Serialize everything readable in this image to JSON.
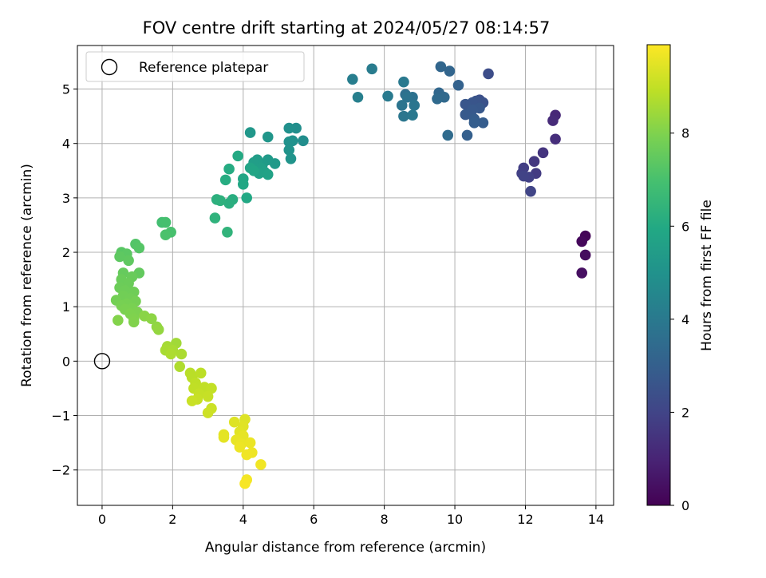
{
  "chart_data": {
    "type": "scatter",
    "title": "FOV centre drift starting at 2024/05/27 08:14:57",
    "xlabel": "Angular distance from reference (arcmin)",
    "ylabel": "Rotation from reference (arcmin)",
    "xlim": [
      -0.7,
      14.5
    ],
    "ylim": [
      -2.65,
      5.8
    ],
    "xticks": [
      0,
      2,
      4,
      6,
      8,
      10,
      12,
      14
    ],
    "yticks": [
      -2,
      -1,
      0,
      1,
      2,
      3,
      4,
      5
    ],
    "xtick_labels": [
      "0",
      "2",
      "4",
      "6",
      "8",
      "10",
      "12",
      "14"
    ],
    "ytick_labels": [
      "−2",
      "−1",
      "0",
      "1",
      "2",
      "3",
      "4",
      "5"
    ],
    "grid": true,
    "legend": {
      "position": "top-left",
      "entries": [
        "Reference platepar"
      ]
    },
    "reference_point": {
      "x": 0,
      "y": 0,
      "label": "Reference platepar",
      "marker": "open-circle"
    },
    "colorbar": {
      "label": "Hours from first FF file",
      "colormap": "viridis",
      "range": [
        0,
        9.9
      ],
      "ticks": [
        0,
        2,
        4,
        6,
        8
      ],
      "tick_labels": [
        "0",
        "2",
        "4",
        "6",
        "8"
      ]
    },
    "series": [
      {
        "points": [
          {
            "x": 13.7,
            "y": 2.3,
            "h": 0.1
          },
          {
            "x": 13.6,
            "y": 2.2,
            "h": 0.2
          },
          {
            "x": 13.7,
            "y": 1.95,
            "h": 0.3
          },
          {
            "x": 13.6,
            "y": 1.62,
            "h": 0.4
          },
          {
            "x": 12.85,
            "y": 4.52,
            "h": 1.1
          },
          {
            "x": 12.78,
            "y": 4.42,
            "h": 1.2
          },
          {
            "x": 12.85,
            "y": 4.08,
            "h": 1.3
          },
          {
            "x": 12.5,
            "y": 3.83,
            "h": 1.5
          },
          {
            "x": 12.25,
            "y": 3.67,
            "h": 1.6
          },
          {
            "x": 12.3,
            "y": 3.45,
            "h": 1.7
          },
          {
            "x": 11.95,
            "y": 3.55,
            "h": 1.8
          },
          {
            "x": 11.9,
            "y": 3.45,
            "h": 1.85
          },
          {
            "x": 12.1,
            "y": 3.38,
            "h": 1.9
          },
          {
            "x": 11.95,
            "y": 3.4,
            "h": 1.95
          },
          {
            "x": 12.15,
            "y": 3.12,
            "h": 2.0
          },
          {
            "x": 10.95,
            "y": 5.28,
            "h": 2.3
          },
          {
            "x": 10.7,
            "y": 4.8,
            "h": 2.4
          },
          {
            "x": 10.8,
            "y": 4.75,
            "h": 2.5
          },
          {
            "x": 10.6,
            "y": 4.78,
            "h": 2.55
          },
          {
            "x": 10.5,
            "y": 4.75,
            "h": 2.6
          },
          {
            "x": 10.3,
            "y": 4.72,
            "h": 2.65
          },
          {
            "x": 10.7,
            "y": 4.65,
            "h": 2.7
          },
          {
            "x": 10.5,
            "y": 4.62,
            "h": 2.75
          },
          {
            "x": 10.3,
            "y": 4.53,
            "h": 2.8
          },
          {
            "x": 10.55,
            "y": 4.45,
            "h": 2.85
          },
          {
            "x": 10.8,
            "y": 4.38,
            "h": 2.9
          },
          {
            "x": 10.55,
            "y": 4.38,
            "h": 2.95
          },
          {
            "x": 10.35,
            "y": 4.15,
            "h": 3.0
          },
          {
            "x": 10.1,
            "y": 5.07,
            "h": 3.1
          },
          {
            "x": 9.85,
            "y": 5.33,
            "h": 3.2
          },
          {
            "x": 9.6,
            "y": 5.41,
            "h": 3.25
          },
          {
            "x": 9.55,
            "y": 4.93,
            "h": 3.3
          },
          {
            "x": 9.7,
            "y": 4.85,
            "h": 3.35
          },
          {
            "x": 9.5,
            "y": 4.82,
            "h": 3.4
          },
          {
            "x": 9.8,
            "y": 4.15,
            "h": 3.45
          },
          {
            "x": 8.6,
            "y": 4.9,
            "h": 3.6
          },
          {
            "x": 8.8,
            "y": 4.85,
            "h": 3.7
          },
          {
            "x": 8.65,
            "y": 4.85,
            "h": 3.75
          },
          {
            "x": 8.5,
            "y": 4.7,
            "h": 3.8
          },
          {
            "x": 8.85,
            "y": 4.7,
            "h": 3.85
          },
          {
            "x": 8.55,
            "y": 4.5,
            "h": 3.9
          },
          {
            "x": 8.8,
            "y": 4.52,
            "h": 3.95
          },
          {
            "x": 8.55,
            "y": 5.13,
            "h": 4.0
          },
          {
            "x": 8.1,
            "y": 4.87,
            "h": 4.05
          },
          {
            "x": 7.65,
            "y": 5.37,
            "h": 4.1
          },
          {
            "x": 7.1,
            "y": 5.18,
            "h": 4.2
          },
          {
            "x": 7.25,
            "y": 4.85,
            "h": 4.25
          },
          {
            "x": 5.7,
            "y": 4.05,
            "h": 4.8
          },
          {
            "x": 5.5,
            "y": 4.28,
            "h": 4.85
          },
          {
            "x": 5.3,
            "y": 4.28,
            "h": 4.9
          },
          {
            "x": 5.4,
            "y": 4.05,
            "h": 4.95
          },
          {
            "x": 5.3,
            "y": 4.03,
            "h": 5.0
          },
          {
            "x": 5.3,
            "y": 3.88,
            "h": 5.05
          },
          {
            "x": 5.35,
            "y": 3.72,
            "h": 5.1
          },
          {
            "x": 4.7,
            "y": 4.12,
            "h": 5.15
          },
          {
            "x": 4.2,
            "y": 4.2,
            "h": 5.2
          },
          {
            "x": 4.9,
            "y": 3.63,
            "h": 5.3
          },
          {
            "x": 4.7,
            "y": 3.7,
            "h": 5.35
          },
          {
            "x": 4.55,
            "y": 3.62,
            "h": 5.4
          },
          {
            "x": 4.4,
            "y": 3.7,
            "h": 5.45
          },
          {
            "x": 4.3,
            "y": 3.65,
            "h": 5.5
          },
          {
            "x": 4.5,
            "y": 3.55,
            "h": 5.55
          },
          {
            "x": 4.6,
            "y": 3.48,
            "h": 5.6
          },
          {
            "x": 4.45,
            "y": 3.45,
            "h": 5.65
          },
          {
            "x": 4.7,
            "y": 3.43,
            "h": 5.7
          },
          {
            "x": 4.2,
            "y": 3.55,
            "h": 5.75
          },
          {
            "x": 4.3,
            "y": 3.5,
            "h": 5.8
          },
          {
            "x": 4.0,
            "y": 3.35,
            "h": 5.85
          },
          {
            "x": 4.0,
            "y": 3.25,
            "h": 5.9
          },
          {
            "x": 4.1,
            "y": 3.0,
            "h": 5.95
          },
          {
            "x": 3.85,
            "y": 3.77,
            "h": 6.0
          },
          {
            "x": 3.6,
            "y": 3.53,
            "h": 6.05
          },
          {
            "x": 3.5,
            "y": 3.33,
            "h": 6.1
          },
          {
            "x": 3.7,
            "y": 2.97,
            "h": 6.15
          },
          {
            "x": 3.6,
            "y": 2.9,
            "h": 6.2
          },
          {
            "x": 3.25,
            "y": 2.97,
            "h": 6.25
          },
          {
            "x": 3.35,
            "y": 2.95,
            "h": 6.3
          },
          {
            "x": 3.2,
            "y": 2.63,
            "h": 6.35
          },
          {
            "x": 3.55,
            "y": 2.37,
            "h": 6.4
          },
          {
            "x": 1.7,
            "y": 2.55,
            "h": 6.9
          },
          {
            "x": 1.8,
            "y": 2.55,
            "h": 6.95
          },
          {
            "x": 1.95,
            "y": 2.37,
            "h": 7.0
          },
          {
            "x": 1.8,
            "y": 2.32,
            "h": 7.05
          },
          {
            "x": 0.95,
            "y": 2.15,
            "h": 7.2
          },
          {
            "x": 1.05,
            "y": 2.08,
            "h": 7.25
          },
          {
            "x": 0.55,
            "y": 2.0,
            "h": 7.3
          },
          {
            "x": 0.7,
            "y": 1.97,
            "h": 7.35
          },
          {
            "x": 0.5,
            "y": 1.92,
            "h": 7.4
          },
          {
            "x": 0.75,
            "y": 1.85,
            "h": 7.45
          },
          {
            "x": 1.05,
            "y": 1.62,
            "h": 7.5
          },
          {
            "x": 0.6,
            "y": 1.62,
            "h": 7.55
          },
          {
            "x": 0.85,
            "y": 1.55,
            "h": 7.6
          },
          {
            "x": 0.55,
            "y": 1.5,
            "h": 7.62
          },
          {
            "x": 0.75,
            "y": 1.43,
            "h": 7.65
          },
          {
            "x": 0.5,
            "y": 1.35,
            "h": 7.67
          },
          {
            "x": 0.65,
            "y": 1.3,
            "h": 7.7
          },
          {
            "x": 0.9,
            "y": 1.27,
            "h": 7.72
          },
          {
            "x": 0.6,
            "y": 1.2,
            "h": 7.75
          },
          {
            "x": 0.8,
            "y": 1.15,
            "h": 7.77
          },
          {
            "x": 0.4,
            "y": 1.12,
            "h": 7.8
          },
          {
            "x": 0.95,
            "y": 1.1,
            "h": 7.82
          },
          {
            "x": 0.7,
            "y": 1.05,
            "h": 7.85
          },
          {
            "x": 0.55,
            "y": 1.02,
            "h": 7.87
          },
          {
            "x": 0.85,
            "y": 0.97,
            "h": 7.9
          },
          {
            "x": 0.65,
            "y": 0.95,
            "h": 7.92
          },
          {
            "x": 1.0,
            "y": 0.9,
            "h": 7.95
          },
          {
            "x": 0.8,
            "y": 0.87,
            "h": 7.97
          },
          {
            "x": 0.9,
            "y": 0.78,
            "h": 8.0
          },
          {
            "x": 0.9,
            "y": 0.72,
            "h": 8.02
          },
          {
            "x": 0.45,
            "y": 0.75,
            "h": 8.05
          },
          {
            "x": 1.2,
            "y": 0.83,
            "h": 8.15
          },
          {
            "x": 1.4,
            "y": 0.78,
            "h": 8.2
          },
          {
            "x": 1.55,
            "y": 0.63,
            "h": 8.25
          },
          {
            "x": 1.6,
            "y": 0.58,
            "h": 8.3
          },
          {
            "x": 2.1,
            "y": 0.33,
            "h": 8.5
          },
          {
            "x": 1.85,
            "y": 0.27,
            "h": 8.55
          },
          {
            "x": 1.8,
            "y": 0.2,
            "h": 8.6
          },
          {
            "x": 2.0,
            "y": 0.2,
            "h": 8.62
          },
          {
            "x": 2.25,
            "y": 0.13,
            "h": 8.65
          },
          {
            "x": 1.95,
            "y": 0.13,
            "h": 8.68
          },
          {
            "x": 2.2,
            "y": -0.1,
            "h": 8.7
          },
          {
            "x": 2.5,
            "y": -0.22,
            "h": 8.85
          },
          {
            "x": 2.55,
            "y": -0.3,
            "h": 8.87
          },
          {
            "x": 2.8,
            "y": -0.22,
            "h": 8.9
          },
          {
            "x": 2.65,
            "y": -0.4,
            "h": 8.92
          },
          {
            "x": 2.6,
            "y": -0.5,
            "h": 8.95
          },
          {
            "x": 2.9,
            "y": -0.48,
            "h": 8.97
          },
          {
            "x": 3.1,
            "y": -0.5,
            "h": 9.0
          },
          {
            "x": 2.75,
            "y": -0.6,
            "h": 9.02
          },
          {
            "x": 3.0,
            "y": -0.65,
            "h": 9.05
          },
          {
            "x": 2.7,
            "y": -0.7,
            "h": 9.07
          },
          {
            "x": 2.55,
            "y": -0.73,
            "h": 9.1
          },
          {
            "x": 3.1,
            "y": -0.87,
            "h": 9.12
          },
          {
            "x": 3.0,
            "y": -0.95,
            "h": 9.15
          },
          {
            "x": 4.05,
            "y": -1.07,
            "h": 9.4
          },
          {
            "x": 3.75,
            "y": -1.12,
            "h": 9.42
          },
          {
            "x": 4.0,
            "y": -1.2,
            "h": 9.45
          },
          {
            "x": 3.9,
            "y": -1.3,
            "h": 9.47
          },
          {
            "x": 3.45,
            "y": -1.35,
            "h": 9.5
          },
          {
            "x": 3.45,
            "y": -1.4,
            "h": 9.52
          },
          {
            "x": 4.0,
            "y": -1.37,
            "h": 9.55
          },
          {
            "x": 3.8,
            "y": -1.45,
            "h": 9.57
          },
          {
            "x": 3.95,
            "y": -1.52,
            "h": 9.6
          },
          {
            "x": 4.2,
            "y": -1.5,
            "h": 9.62
          },
          {
            "x": 3.9,
            "y": -1.58,
            "h": 9.65
          },
          {
            "x": 4.25,
            "y": -1.68,
            "h": 9.67
          },
          {
            "x": 4.1,
            "y": -1.72,
            "h": 9.7
          },
          {
            "x": 4.5,
            "y": -1.9,
            "h": 9.72
          },
          {
            "x": 4.1,
            "y": -2.18,
            "h": 9.75
          },
          {
            "x": 4.05,
            "y": -2.25,
            "h": 9.8
          }
        ]
      }
    ]
  }
}
